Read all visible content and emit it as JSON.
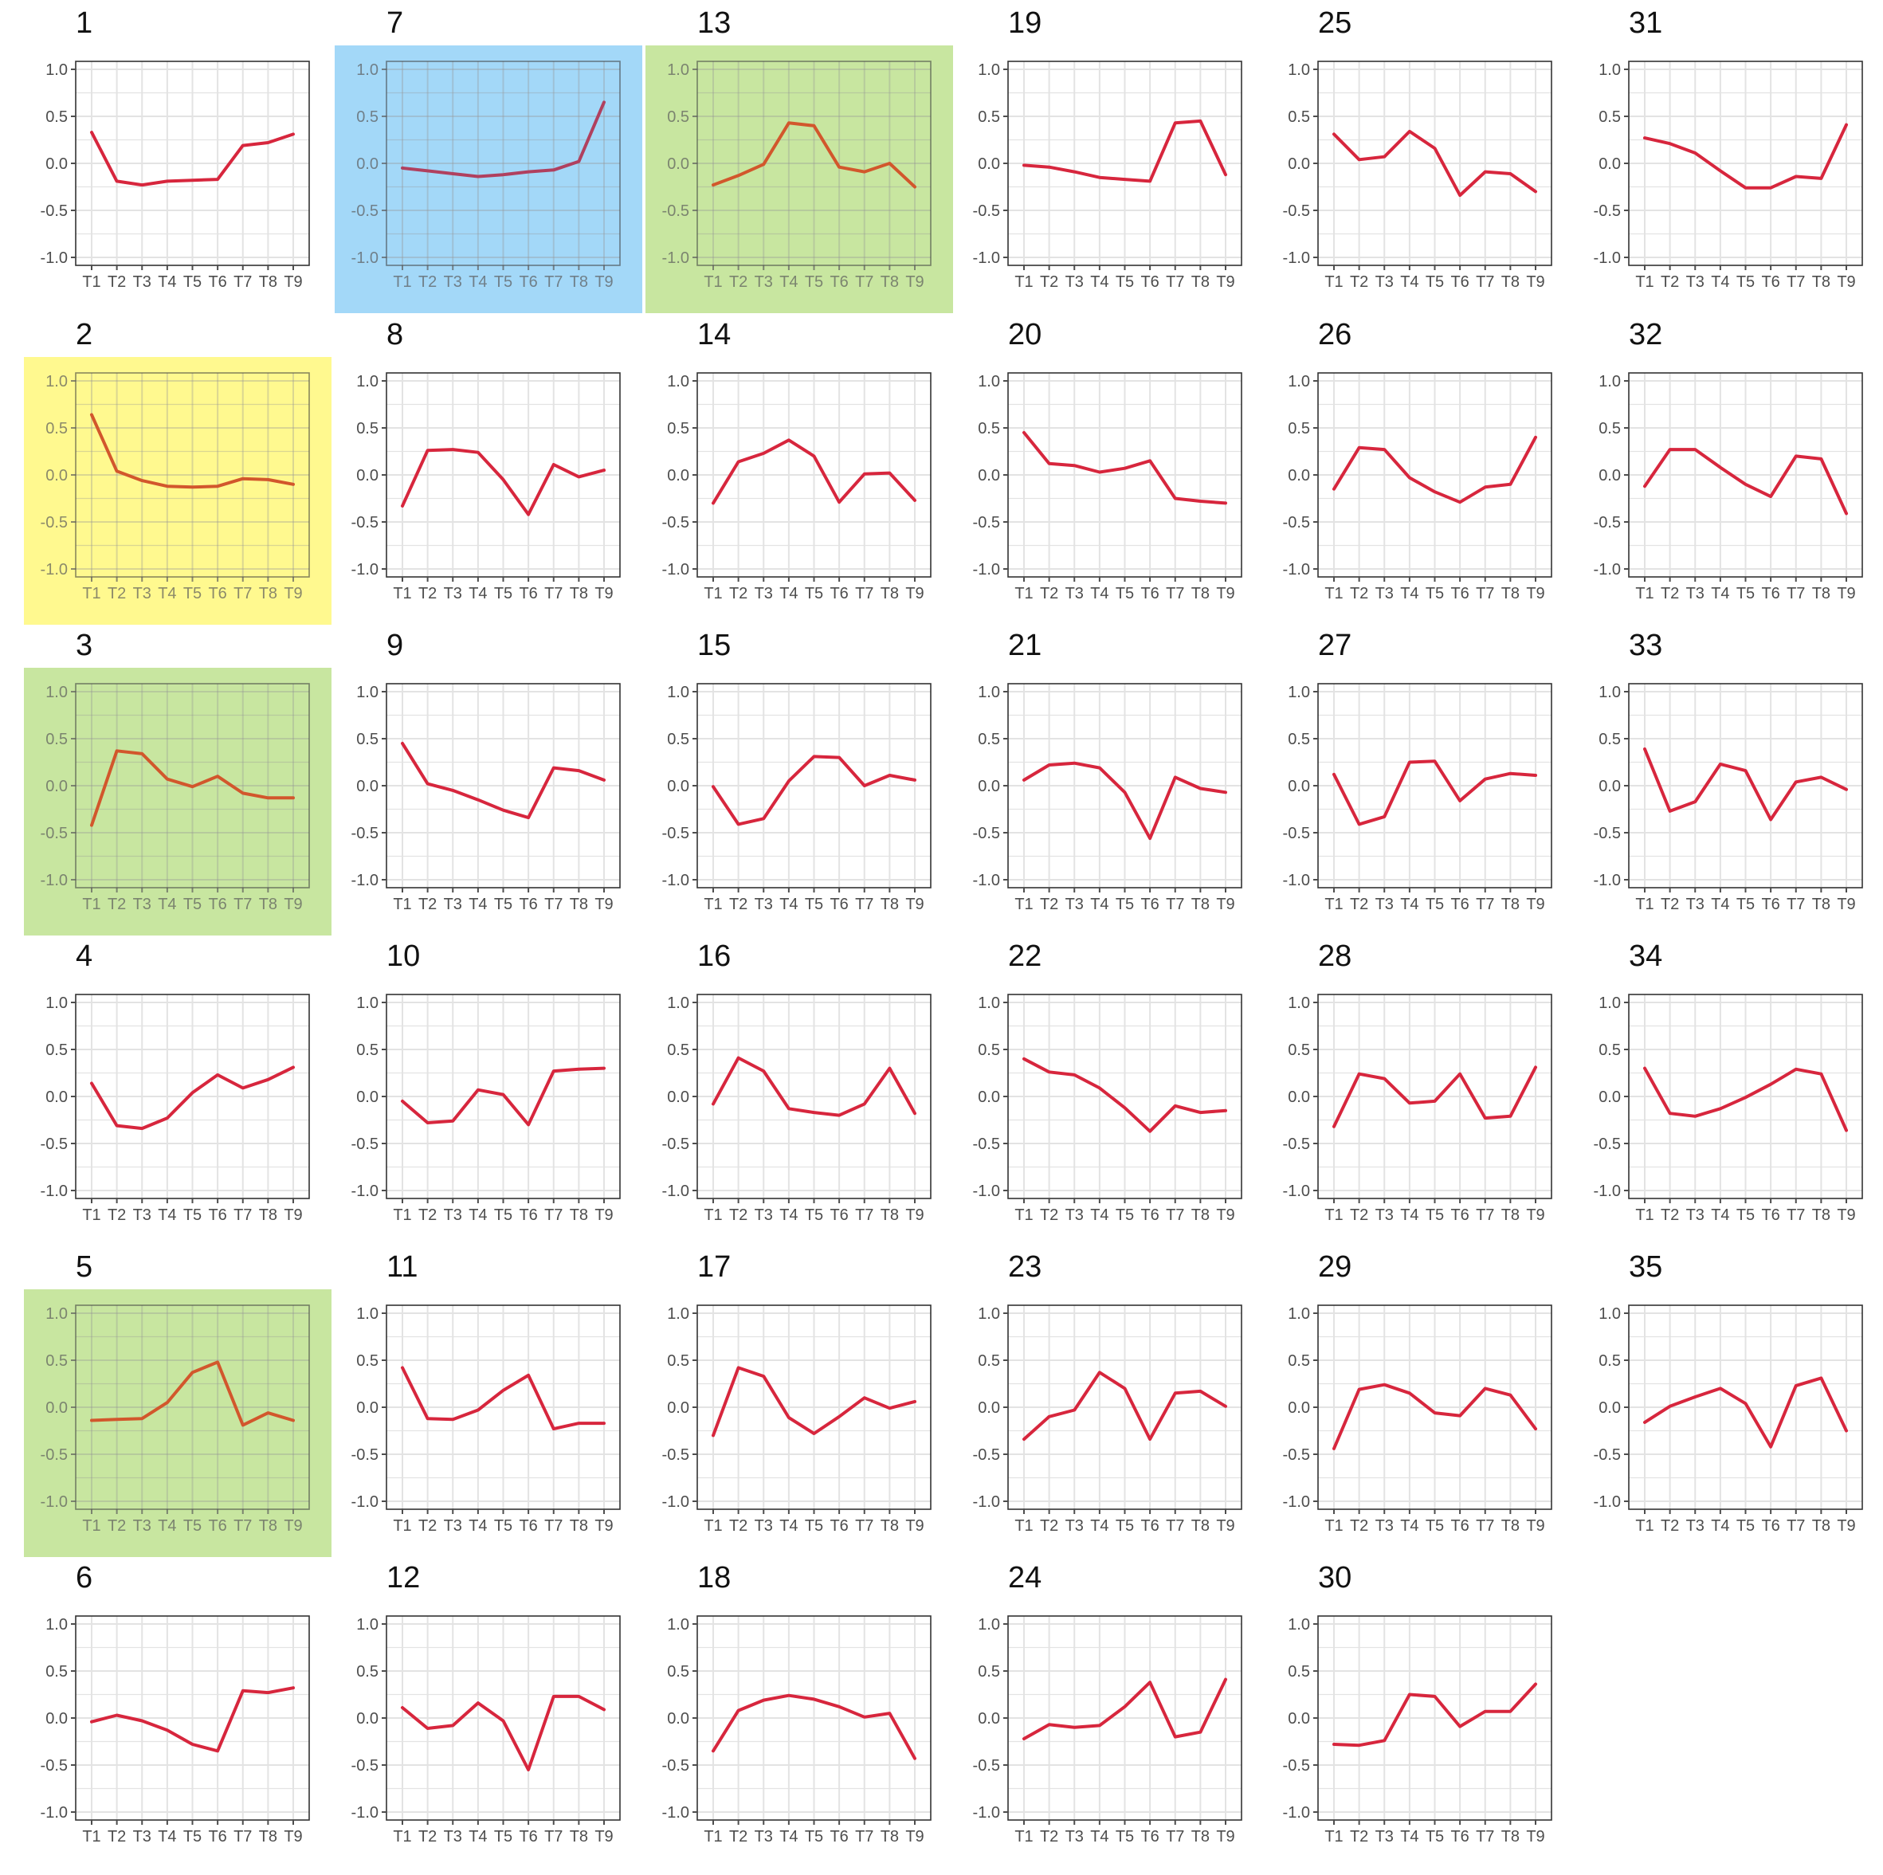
{
  "chart_data": {
    "type": "line",
    "layout": "facet-grid",
    "x_categories": [
      "T1",
      "T2",
      "T3",
      "T4",
      "T5",
      "T6",
      "T7",
      "T8",
      "T9"
    ],
    "y_range": [
      -1.0,
      1.0
    ],
    "y_ticks": [
      "1.0",
      "0.5",
      "0.0",
      "-0.5",
      "-1.0"
    ],
    "grid": true,
    "line_color": "#d7263d",
    "highlight_colors": {
      "yellow": "#fff98f",
      "green": "#c8e6a0",
      "blue": "#a3d8f8"
    },
    "panels": [
      {
        "title": "1",
        "values": [
          0.33,
          -0.19,
          -0.23,
          -0.19,
          -0.18,
          -0.17,
          0.19,
          0.22,
          0.31
        ],
        "highlight": null
      },
      {
        "title": "2",
        "values": [
          0.64,
          0.04,
          -0.06,
          -0.12,
          -0.13,
          -0.12,
          -0.04,
          -0.05,
          -0.1
        ],
        "highlight": "yellow"
      },
      {
        "title": "3",
        "values": [
          -0.42,
          0.37,
          0.34,
          0.07,
          -0.01,
          0.1,
          -0.08,
          -0.13,
          -0.13
        ],
        "highlight": "green"
      },
      {
        "title": "4",
        "values": [
          0.14,
          -0.31,
          -0.34,
          -0.23,
          0.04,
          0.23,
          0.09,
          0.18,
          0.31
        ],
        "highlight": null
      },
      {
        "title": "5",
        "values": [
          -0.14,
          -0.13,
          -0.12,
          0.05,
          0.37,
          0.48,
          -0.19,
          -0.06,
          -0.14
        ],
        "highlight": "green"
      },
      {
        "title": "6",
        "values": [
          -0.04,
          0.03,
          -0.03,
          -0.13,
          -0.28,
          -0.35,
          0.29,
          0.27,
          0.32
        ],
        "highlight": null
      },
      {
        "title": "7",
        "values": [
          -0.05,
          -0.08,
          -0.11,
          -0.14,
          -0.12,
          -0.09,
          -0.07,
          0.02,
          0.65
        ],
        "highlight": "blue"
      },
      {
        "title": "8",
        "values": [
          -0.33,
          0.26,
          0.27,
          0.24,
          -0.05,
          -0.42,
          0.11,
          -0.02,
          0.05
        ],
        "highlight": null
      },
      {
        "title": "9",
        "values": [
          0.45,
          0.02,
          -0.05,
          -0.15,
          -0.26,
          -0.34,
          0.19,
          0.16,
          0.06
        ],
        "highlight": null
      },
      {
        "title": "10",
        "values": [
          -0.05,
          -0.28,
          -0.26,
          0.07,
          0.02,
          -0.3,
          0.27,
          0.29,
          0.3
        ],
        "highlight": null
      },
      {
        "title": "11",
        "values": [
          0.42,
          -0.12,
          -0.13,
          -0.03,
          0.18,
          0.34,
          -0.23,
          -0.17,
          -0.17
        ],
        "highlight": null
      },
      {
        "title": "12",
        "values": [
          0.11,
          -0.11,
          -0.08,
          0.16,
          -0.03,
          -0.55,
          0.23,
          0.23,
          0.09
        ],
        "highlight": null
      },
      {
        "title": "13",
        "values": [
          -0.23,
          -0.13,
          -0.01,
          0.43,
          0.4,
          -0.04,
          -0.09,
          0.0,
          -0.25
        ],
        "highlight": "green"
      },
      {
        "title": "14",
        "values": [
          -0.3,
          0.14,
          0.23,
          0.37,
          0.2,
          -0.29,
          0.01,
          0.02,
          -0.27
        ],
        "highlight": null
      },
      {
        "title": "15",
        "values": [
          -0.01,
          -0.41,
          -0.35,
          0.05,
          0.31,
          0.3,
          0.0,
          0.11,
          0.06
        ],
        "highlight": null
      },
      {
        "title": "16",
        "values": [
          -0.08,
          0.41,
          0.27,
          -0.13,
          -0.17,
          -0.2,
          -0.08,
          0.3,
          -0.18
        ],
        "highlight": null
      },
      {
        "title": "17",
        "values": [
          -0.3,
          0.42,
          0.33,
          -0.11,
          -0.28,
          -0.1,
          0.1,
          -0.01,
          0.06
        ],
        "highlight": null
      },
      {
        "title": "18",
        "values": [
          -0.35,
          0.08,
          0.19,
          0.24,
          0.2,
          0.12,
          0.01,
          0.05,
          -0.43
        ],
        "highlight": null
      },
      {
        "title": "19",
        "values": [
          -0.02,
          -0.04,
          -0.09,
          -0.15,
          -0.17,
          -0.19,
          0.43,
          0.45,
          -0.12
        ],
        "highlight": null
      },
      {
        "title": "20",
        "values": [
          0.45,
          0.12,
          0.1,
          0.03,
          0.07,
          0.15,
          -0.25,
          -0.28,
          -0.3
        ],
        "highlight": null
      },
      {
        "title": "21",
        "values": [
          0.06,
          0.22,
          0.24,
          0.19,
          -0.07,
          -0.56,
          0.09,
          -0.03,
          -0.07
        ],
        "highlight": null
      },
      {
        "title": "22",
        "values": [
          0.4,
          0.26,
          0.23,
          0.09,
          -0.12,
          -0.37,
          -0.1,
          -0.17,
          -0.15
        ],
        "highlight": null
      },
      {
        "title": "23",
        "values": [
          -0.34,
          -0.1,
          -0.03,
          0.37,
          0.2,
          -0.34,
          0.15,
          0.17,
          0.01
        ],
        "highlight": null
      },
      {
        "title": "24",
        "values": [
          -0.22,
          -0.07,
          -0.1,
          -0.08,
          0.12,
          0.38,
          -0.2,
          -0.15,
          0.41
        ],
        "highlight": null
      },
      {
        "title": "25",
        "values": [
          0.31,
          0.04,
          0.07,
          0.34,
          0.16,
          -0.34,
          -0.09,
          -0.11,
          -0.3
        ],
        "highlight": null
      },
      {
        "title": "26",
        "values": [
          -0.15,
          0.29,
          0.27,
          -0.03,
          -0.18,
          -0.29,
          -0.13,
          -0.1,
          0.4
        ],
        "highlight": null
      },
      {
        "title": "27",
        "values": [
          0.12,
          -0.41,
          -0.33,
          0.25,
          0.26,
          -0.16,
          0.07,
          0.13,
          0.11
        ],
        "highlight": null
      },
      {
        "title": "28",
        "values": [
          -0.32,
          0.24,
          0.19,
          -0.07,
          -0.05,
          0.24,
          -0.23,
          -0.21,
          0.31
        ],
        "highlight": null
      },
      {
        "title": "29",
        "values": [
          -0.44,
          0.19,
          0.24,
          0.15,
          -0.06,
          -0.09,
          0.2,
          0.13,
          -0.23
        ],
        "highlight": null
      },
      {
        "title": "30",
        "values": [
          -0.28,
          -0.29,
          -0.24,
          0.25,
          0.23,
          -0.09,
          0.07,
          0.07,
          0.36
        ],
        "highlight": null
      },
      {
        "title": "31",
        "values": [
          0.27,
          0.21,
          0.11,
          -0.08,
          -0.26,
          -0.26,
          -0.14,
          -0.16,
          0.41
        ],
        "highlight": null
      },
      {
        "title": "32",
        "values": [
          -0.12,
          0.27,
          0.27,
          0.08,
          -0.1,
          -0.23,
          0.2,
          0.17,
          -0.41
        ],
        "highlight": null
      },
      {
        "title": "33",
        "values": [
          0.39,
          -0.27,
          -0.17,
          0.23,
          0.16,
          -0.36,
          0.04,
          0.09,
          -0.04
        ],
        "highlight": null
      },
      {
        "title": "34",
        "values": [
          0.3,
          -0.18,
          -0.21,
          -0.13,
          -0.01,
          0.13,
          0.29,
          0.24,
          -0.36
        ],
        "highlight": null
      },
      {
        "title": "35",
        "values": [
          -0.16,
          0.01,
          0.11,
          0.2,
          0.04,
          -0.42,
          0.23,
          0.31,
          -0.25
        ],
        "highlight": null
      }
    ]
  }
}
